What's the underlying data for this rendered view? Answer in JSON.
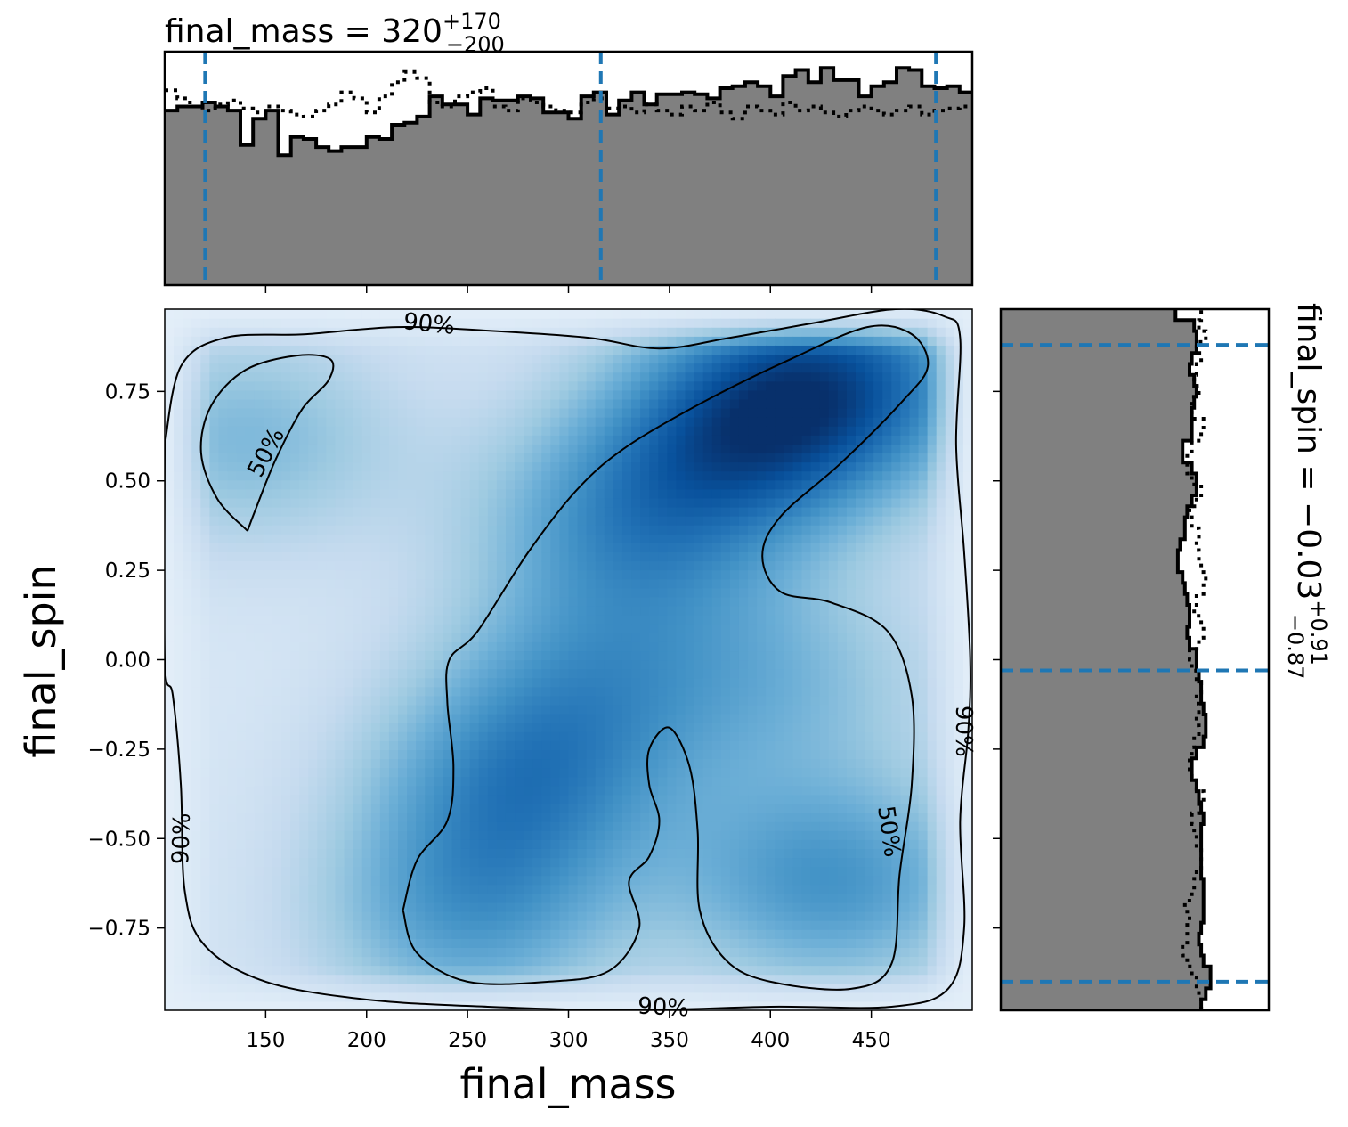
{
  "colors": {
    "hist_fill": "#808080",
    "hist_edge": "#000000",
    "quantile_line": "#1f77b4",
    "density_low": "#f7fbff",
    "density_high": "#08306b"
  },
  "chart_data": [
    {
      "type": "heatmap",
      "name": "joint-posterior",
      "xlabel": "final_mass",
      "ylabel": "final_spin",
      "xlim": [
        100,
        500
      ],
      "ylim": [
        -0.98,
        0.98
      ],
      "xticks": [
        150,
        200,
        250,
        300,
        350,
        400,
        450
      ],
      "xtick_labels": [
        "150",
        "200",
        "250",
        "300",
        "350",
        "400",
        "450"
      ],
      "yticks": [
        0.75,
        0.5,
        0.25,
        0.0,
        -0.25,
        -0.5,
        -0.75
      ],
      "ytick_labels": [
        "0.75",
        "0.50",
        "0.25",
        "0.00",
        "−0.25",
        "−0.50",
        "−0.75"
      ],
      "colormap": "Blues",
      "density_peaks": [
        {
          "x": 390,
          "y": 0.65,
          "weight": 1.0
        },
        {
          "x": 440,
          "y": 0.8,
          "weight": 0.9
        },
        {
          "x": 330,
          "y": 0.38,
          "weight": 0.75
        },
        {
          "x": 275,
          "y": -0.35,
          "weight": 0.8
        },
        {
          "x": 430,
          "y": -0.62,
          "weight": 0.85
        },
        {
          "x": 250,
          "y": -0.72,
          "weight": 0.72
        },
        {
          "x": 140,
          "y": 0.62,
          "weight": 0.55
        },
        {
          "x": 310,
          "y": -0.05,
          "weight": 0.55
        },
        {
          "x": 410,
          "y": -0.05,
          "weight": 0.45
        }
      ],
      "contours": [
        {
          "level": "50%",
          "labels": [
            {
              "text": "50%",
              "x": 150,
              "y": 0.58,
              "angle": -62
            },
            {
              "text": "50%",
              "x": 459,
              "y": -0.48,
              "angle": 82
            }
          ],
          "paths": [
            [
              [
                141,
                0.36
              ],
              [
                126,
                0.45
              ],
              [
                118,
                0.58
              ],
              [
                123,
                0.71
              ],
              [
                140,
                0.81
              ],
              [
                165,
                0.85
              ],
              [
                182,
                0.84
              ],
              [
                181,
                0.78
              ],
              [
                168,
                0.7
              ],
              [
                155,
                0.56
              ],
              [
                145,
                0.42
              ],
              [
                141,
                0.36
              ]
            ],
            [
              [
                218,
                -0.7
              ],
              [
                225,
                -0.56
              ],
              [
                240,
                -0.45
              ],
              [
                243,
                -0.3
              ],
              [
                240,
                -0.12
              ],
              [
                241,
                0.0
              ],
              [
                255,
                0.08
              ],
              [
                280,
                0.3
              ],
              [
                305,
                0.48
              ],
              [
                330,
                0.6
              ],
              [
                370,
                0.73
              ],
              [
                410,
                0.84
              ],
              [
                448,
                0.93
              ],
              [
                470,
                0.91
              ],
              [
                478,
                0.82
              ],
              [
                465,
                0.72
              ],
              [
                435,
                0.55
              ],
              [
                405,
                0.4
              ],
              [
                396,
                0.29
              ],
              [
                405,
                0.19
              ],
              [
                430,
                0.16
              ],
              [
                458,
                0.08
              ],
              [
                470,
                -0.1
              ],
              [
                470,
                -0.35
              ],
              [
                464,
                -0.6
              ],
              [
                460,
                -0.85
              ],
              [
                440,
                -0.92
              ],
              [
                400,
                -0.9
              ],
              [
                378,
                -0.84
              ],
              [
                365,
                -0.7
              ],
              [
                364,
                -0.48
              ],
              [
                360,
                -0.3
              ],
              [
                350,
                -0.19
              ],
              [
                340,
                -0.25
              ],
              [
                340,
                -0.35
              ],
              [
                345,
                -0.45
              ],
              [
                340,
                -0.55
              ],
              [
                330,
                -0.62
              ],
              [
                335,
                -0.75
              ],
              [
                320,
                -0.87
              ],
              [
                290,
                -0.9
              ],
              [
                250,
                -0.9
              ],
              [
                225,
                -0.82
              ],
              [
                218,
                -0.7
              ]
            ]
          ]
        },
        {
          "level": "90%",
          "labels": [
            {
              "text": "90%",
              "x": 231,
              "y": 0.94,
              "angle": 6
            },
            {
              "text": "90%",
              "x": 108,
              "y": -0.5,
              "angle": -88
            },
            {
              "text": "90%",
              "x": 347,
              "y": -0.97,
              "angle": 3
            },
            {
              "text": "90%",
              "x": 496,
              "y": -0.2,
              "angle": 90
            }
          ],
          "paths": [
            [
              [
                100,
                0.6
              ],
              [
                108,
                0.82
              ],
              [
                130,
                0.9
              ],
              [
                170,
                0.91
              ],
              [
                215,
                0.93
              ],
              [
                260,
                0.92
              ],
              [
                310,
                0.9
              ],
              [
                345,
                0.87
              ],
              [
                380,
                0.9
              ],
              [
                420,
                0.94
              ],
              [
                462,
                0.98
              ],
              [
                486,
                0.96
              ],
              [
                494,
                0.9
              ],
              [
                492,
                0.6
              ],
              [
                496,
                0.3
              ],
              [
                499,
                0.0
              ],
              [
                498,
                -0.2
              ],
              [
                494,
                -0.45
              ],
              [
                496,
                -0.75
              ],
              [
                488,
                -0.92
              ],
              [
                460,
                -0.97
              ],
              [
                400,
                -0.97
              ],
              [
                330,
                -0.98
              ],
              [
                260,
                -0.97
              ],
              [
                200,
                -0.95
              ],
              [
                150,
                -0.9
              ],
              [
                120,
                -0.8
              ],
              [
                110,
                -0.65
              ],
              [
                108,
                -0.35
              ],
              [
                104,
                -0.1
              ],
              [
                100,
                0.0
              ],
              [
                100,
                0.6
              ]
            ]
          ]
        }
      ]
    },
    {
      "type": "bar",
      "name": "final_mass-marginal",
      "title_base": "final_mass = 320",
      "title_sup": "+170",
      "title_sub": "−200",
      "xlim": [
        100,
        500
      ],
      "bin_edges": [
        100,
        500
      ],
      "series": [
        {
          "style": "step-filled",
          "values": [
            0.86,
            0.88,
            0.88,
            0.9,
            0.88,
            0.86,
            0.69,
            0.82,
            0.86,
            0.64,
            0.73,
            0.72,
            0.68,
            0.66,
            0.68,
            0.68,
            0.73,
            0.72,
            0.79,
            0.8,
            0.83,
            0.93,
            0.89,
            0.89,
            0.84,
            0.92,
            0.91,
            0.91,
            0.93,
            0.92,
            0.85,
            0.85,
            0.82,
            0.93,
            0.95,
            0.84,
            0.91,
            0.95,
            0.89,
            0.94,
            0.94,
            0.95,
            0.94,
            0.92,
            0.97,
            0.98,
            1.0,
            0.98,
            0.93,
            1.03,
            1.06,
            1.0,
            1.07,
            1.01,
            1.01,
            0.93,
            0.98,
            1.0,
            1.07,
            1.06,
            0.98,
            0.97,
            0.98,
            0.95
          ]
        },
        {
          "style": "dotted",
          "values": [
            0.96,
            0.92,
            0.88,
            0.86,
            0.89,
            0.91,
            0.87,
            0.85,
            0.88,
            0.86,
            0.84,
            0.83,
            0.86,
            0.89,
            0.95,
            0.92,
            0.85,
            0.93,
            1.0,
            1.05,
            1.02,
            0.9,
            0.88,
            0.93,
            0.95,
            0.97,
            0.88,
            0.86,
            0.92,
            0.9,
            0.88,
            0.86,
            0.85,
            0.9,
            0.92,
            0.87,
            0.88,
            0.85,
            0.89,
            0.86,
            0.84,
            0.88,
            0.86,
            0.9,
            0.85,
            0.82,
            0.88,
            0.86,
            0.84,
            0.9,
            0.86,
            0.88,
            0.85,
            0.83,
            0.86,
            0.88,
            0.86,
            0.84,
            0.86,
            0.88,
            0.84,
            0.86,
            0.87,
            0.88
          ]
        }
      ],
      "ylim": [
        0,
        1.15
      ],
      "quantiles": [
        120,
        316,
        482
      ]
    },
    {
      "type": "bar",
      "name": "final_spin-marginal",
      "orientation": "horizontal",
      "label_base": "final_spin = −0.03",
      "label_sup": "+0.91",
      "label_sub": "−0.87",
      "ylim": [
        -0.98,
        0.98
      ],
      "series": [
        {
          "style": "step-filled",
          "values": [
            0.86,
            0.88,
            0.9,
            0.9,
            0.87,
            0.86,
            0.85,
            0.86,
            0.87,
            0.87,
            0.87,
            0.87,
            0.86,
            0.86,
            0.86,
            0.86,
            0.86,
            0.87,
            0.86,
            0.85,
            0.84,
            0.82,
            0.82,
            0.84,
            0.87,
            0.88,
            0.88,
            0.87,
            0.86,
            0.86,
            0.85,
            0.84,
            0.84,
            0.81,
            0.8,
            0.81,
            0.81,
            0.8,
            0.79,
            0.78,
            0.76,
            0.76,
            0.77,
            0.79,
            0.79,
            0.8,
            0.82,
            0.84,
            0.84,
            0.82,
            0.78,
            0.78,
            0.82,
            0.82,
            0.82,
            0.83,
            0.84,
            0.83,
            0.81,
            0.82,
            0.84,
            0.84,
            0.83,
            0.75
          ]
        },
        {
          "style": "dotted",
          "values": [
            0.86,
            0.85,
            0.84,
            0.82,
            0.8,
            0.78,
            0.8,
            0.8,
            0.81,
            0.79,
            0.82,
            0.83,
            0.84,
            0.86,
            0.86,
            0.84,
            0.83,
            0.82,
            0.85,
            0.87,
            0.84,
            0.82,
            0.81,
            0.82,
            0.83,
            0.85,
            0.84,
            0.85,
            0.84,
            0.86,
            0.84,
            0.82,
            0.81,
            0.85,
            0.87,
            0.86,
            0.83,
            0.84,
            0.87,
            0.88,
            0.86,
            0.85,
            0.84,
            0.85,
            0.82,
            0.81,
            0.84,
            0.86,
            0.82,
            0.8,
            0.8,
            0.82,
            0.86,
            0.87,
            0.82,
            0.82,
            0.85,
            0.83,
            0.84,
            0.86,
            0.84,
            0.88,
            0.85,
            0.86
          ]
        }
      ],
      "xlim": [
        0,
        1.0
      ],
      "quantiles": [
        -0.9,
        -0.03,
        0.88
      ]
    }
  ]
}
